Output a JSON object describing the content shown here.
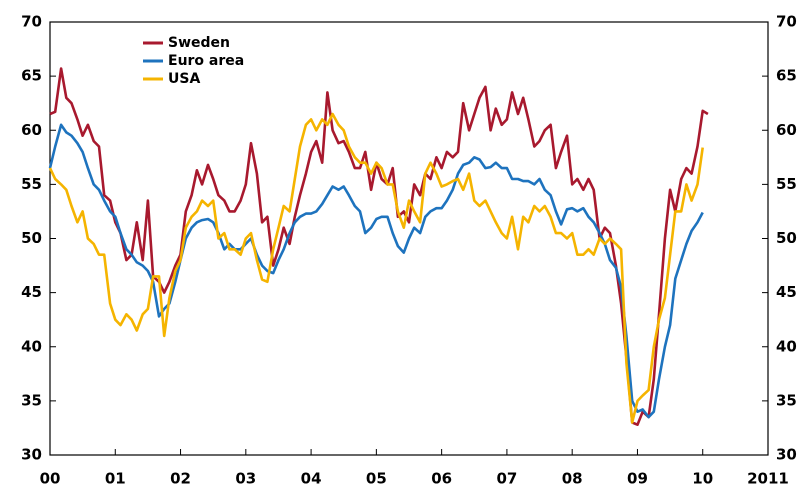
{
  "chart_data": {
    "type": "line",
    "x": [
      2000,
      2000.08,
      2000.17,
      2000.25,
      2000.33,
      2000.42,
      2000.5,
      2000.58,
      2000.67,
      2000.75,
      2000.83,
      2000.92,
      2001,
      2001.08,
      2001.17,
      2001.25,
      2001.33,
      2001.42,
      2001.5,
      2001.58,
      2001.67,
      2001.75,
      2001.83,
      2001.92,
      2002,
      2002.08,
      2002.17,
      2002.25,
      2002.33,
      2002.42,
      2002.5,
      2002.58,
      2002.67,
      2002.75,
      2002.83,
      2002.92,
      2003,
      2003.08,
      2003.17,
      2003.25,
      2003.33,
      2003.42,
      2003.5,
      2003.58,
      2003.67,
      2003.75,
      2003.83,
      2003.92,
      2004,
      2004.08,
      2004.17,
      2004.25,
      2004.33,
      2004.42,
      2004.5,
      2004.58,
      2004.67,
      2004.75,
      2004.83,
      2004.92,
      2005,
      2005.08,
      2005.17,
      2005.25,
      2005.33,
      2005.42,
      2005.5,
      2005.58,
      2005.67,
      2005.75,
      2005.83,
      2005.92,
      2006,
      2006.08,
      2006.17,
      2006.25,
      2006.33,
      2006.42,
      2006.5,
      2006.58,
      2006.67,
      2006.75,
      2006.83,
      2006.92,
      2007,
      2007.08,
      2007.17,
      2007.25,
      2007.33,
      2007.42,
      2007.5,
      2007.58,
      2007.67,
      2007.75,
      2007.83,
      2007.92,
      2008,
      2008.08,
      2008.17,
      2008.25,
      2008.33,
      2008.42,
      2008.5,
      2008.58,
      2008.67,
      2008.75,
      2008.83,
      2008.92,
      2009,
      2009.08,
      2009.17,
      2009.25,
      2009.33,
      2009.42,
      2009.5,
      2009.58,
      2009.67,
      2009.75,
      2009.83,
      2009.92,
      2010,
      2010.08
    ],
    "series": [
      {
        "name": "Sweden",
        "color": "#a8192e",
        "values": [
          61.5,
          61.7,
          65.7,
          63,
          62.5,
          61,
          59.5,
          60.5,
          59,
          58.5,
          54,
          53.5,
          51.5,
          50.5,
          48,
          48.5,
          51.5,
          48,
          53.5,
          46.5,
          46,
          45,
          46,
          47.5,
          48.5,
          52.5,
          54,
          56.3,
          55,
          56.8,
          55.5,
          54,
          53.5,
          52.5,
          52.5,
          53.5,
          55,
          58.8,
          56,
          51.5,
          52,
          47.5,
          49,
          51,
          49.5,
          52,
          54,
          56,
          58,
          59,
          57,
          63.5,
          60,
          58.8,
          59,
          58,
          56.5,
          56.5,
          58,
          54.5,
          57,
          55.5,
          55,
          56.5,
          52,
          52.5,
          51.5,
          55,
          54,
          56,
          55.5,
          57.5,
          56.5,
          58,
          57.5,
          58,
          62.5,
          60,
          61.5,
          63,
          64,
          60,
          62,
          60.5,
          61,
          63.5,
          61.5,
          63,
          61,
          58.5,
          59,
          60,
          60.5,
          56.5,
          58,
          59.5,
          55,
          55.5,
          54.5,
          55.5,
          54.5,
          50,
          51,
          50.5,
          47.5,
          44,
          39,
          33,
          32.8,
          34,
          33.5,
          37,
          43,
          50,
          54.5,
          52.5,
          55.5,
          56.5,
          56,
          58.5,
          61.8,
          61.5
        ]
      },
      {
        "name": "Euro area",
        "color": "#1e73be",
        "values": [
          56.5,
          58.5,
          60.5,
          59.8,
          59.5,
          58.8,
          58,
          56.5,
          55,
          54.5,
          53.5,
          52.5,
          52,
          50.5,
          49,
          48.5,
          47.8,
          47.5,
          47,
          46,
          42.8,
          43.5,
          44,
          46,
          48,
          50,
          51,
          51.5,
          51.7,
          51.8,
          51.5,
          50.5,
          49,
          49.5,
          49,
          49,
          49.5,
          50,
          48.5,
          47.5,
          47,
          46.8,
          48,
          49,
          50.5,
          51.5,
          52,
          52.3,
          52.3,
          52.5,
          53.2,
          54,
          54.8,
          54.5,
          54.8,
          54,
          53,
          52.5,
          50.5,
          51,
          51.8,
          52,
          52,
          50.5,
          49.3,
          48.7,
          50,
          51,
          50.5,
          52,
          52.5,
          52.8,
          52.8,
          53.5,
          54.5,
          56,
          56.8,
          57,
          57.5,
          57.3,
          56.5,
          56.6,
          57,
          56.5,
          56.5,
          55.5,
          55.5,
          55.3,
          55.3,
          55,
          55.5,
          54.5,
          54,
          52.5,
          51.3,
          52.7,
          52.8,
          52.5,
          52.8,
          52,
          51.5,
          50.5,
          49.5,
          48,
          47.3,
          45.5,
          41,
          35,
          34,
          34.2,
          33.5,
          34,
          37,
          40,
          42,
          46.3,
          48,
          49.5,
          50.7,
          51.5,
          52.4,
          null
        ]
      },
      {
        "name": "USA",
        "color": "#f5b400",
        "values": [
          56.5,
          55.5,
          55,
          54.5,
          53,
          51.5,
          52.5,
          50,
          49.5,
          48.5,
          48.5,
          44,
          42.5,
          42,
          43,
          42.5,
          41.5,
          43,
          43.5,
          46.5,
          46.5,
          41,
          44.5,
          47,
          48,
          51,
          52,
          52.5,
          53.5,
          53,
          53.5,
          50,
          50.5,
          49,
          49,
          48.5,
          50,
          50.5,
          48,
          46.2,
          46,
          49,
          51,
          53,
          52.5,
          55.5,
          58.5,
          60.5,
          61,
          60,
          61,
          60.5,
          61.5,
          60.5,
          60,
          58.5,
          57.5,
          57,
          57,
          56,
          57,
          56.5,
          55,
          55,
          52.5,
          51,
          53.5,
          52.5,
          51.5,
          56,
          57,
          56,
          54.8,
          55,
          55.3,
          55.5,
          54.5,
          56,
          53.5,
          53,
          53.5,
          52.5,
          51.5,
          50.5,
          50,
          52,
          49,
          52,
          51.5,
          53,
          52.5,
          53,
          52,
          50.5,
          50.5,
          50,
          50.5,
          48.5,
          48.5,
          49,
          48.5,
          50,
          49.5,
          50,
          49.5,
          49,
          38.5,
          33,
          35,
          35.5,
          36,
          40,
          42.5,
          44.5,
          48.5,
          52.5,
          52.5,
          55,
          53.5,
          55,
          58.4,
          null
        ]
      }
    ],
    "xlim": [
      2000,
      2011
    ],
    "xticks": [
      {
        "value": 2000,
        "label": "00"
      },
      {
        "value": 2001,
        "label": "01"
      },
      {
        "value": 2002,
        "label": "02"
      },
      {
        "value": 2003,
        "label": "03"
      },
      {
        "value": 2004,
        "label": "04"
      },
      {
        "value": 2005,
        "label": "05"
      },
      {
        "value": 2006,
        "label": "06"
      },
      {
        "value": 2007,
        "label": "07"
      },
      {
        "value": 2008,
        "label": "08"
      },
      {
        "value": 2009,
        "label": "09"
      },
      {
        "value": 2010,
        "label": "10"
      },
      2011
    ],
    "ylim": [
      30,
      70
    ],
    "yticks": [
      30,
      35,
      40,
      45,
      50,
      55,
      60,
      65,
      70
    ],
    "grid": false,
    "legend": "upper-left"
  }
}
